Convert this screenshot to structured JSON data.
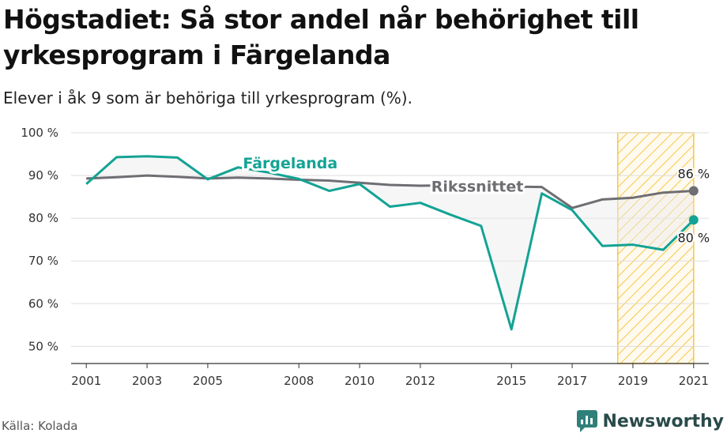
{
  "header": {
    "title": "Högstadiet: Så stor andel når behörighet till yrkesprogram i Färgelanda",
    "subtitle": "Elever i åk 9 som är behöriga till yrkesprogram (%)."
  },
  "footer": {
    "source": "Källa: Kolada",
    "brand": "Newsworthy"
  },
  "colors": {
    "local": "#13a394",
    "national": "#6e6e73",
    "highlight": "#f5c842",
    "grid": "#dddddd"
  },
  "chart_data": {
    "type": "line",
    "title": "Högstadiet: Så stor andel når behörighet till yrkesprogram i Färgelanda",
    "subtitle": "Elever i åk 9 som är behöriga till yrkesprogram (%).",
    "xlabel": "",
    "ylabel": "",
    "xlim": [
      2000.5,
      2021.5
    ],
    "ylim": [
      46,
      100
    ],
    "x_ticks": [
      2001,
      2003,
      2005,
      2008,
      2010,
      2012,
      2015,
      2017,
      2019,
      2021
    ],
    "y_ticks": [
      50,
      60,
      70,
      80,
      90,
      100
    ],
    "y_tick_labels": [
      "50 %",
      "60 %",
      "70 %",
      "80 %",
      "90 %",
      "100 %"
    ],
    "highlight_range": [
      2019,
      2021
    ],
    "grid": true,
    "series": [
      {
        "name": "Färgelanda",
        "color": "#13a394",
        "x": [
          2001,
          2002,
          2003,
          2004,
          2005,
          2006,
          2007,
          2008,
          2009,
          2010,
          2011,
          2012,
          2013,
          2014,
          2015,
          2016,
          2017,
          2018,
          2019,
          2020,
          2021
        ],
        "y": [
          88.0,
          94.3,
          94.5,
          94.2,
          89.1,
          91.9,
          90.7,
          89.2,
          86.4,
          88.0,
          82.7,
          83.6,
          80.8,
          78.2,
          54.0,
          85.8,
          81.9,
          73.5,
          73.8,
          72.6,
          79.6
        ]
      },
      {
        "name": "Rikssnittet",
        "color": "#6e6e73",
        "x": [
          2001,
          2002,
          2003,
          2004,
          2005,
          2006,
          2007,
          2008,
          2009,
          2010,
          2011,
          2012,
          2013,
          2014,
          2015,
          2016,
          2017,
          2018,
          2019,
          2020,
          2021
        ],
        "y": [
          89.3,
          89.6,
          90.0,
          89.7,
          89.3,
          89.5,
          89.3,
          89.0,
          88.8,
          88.3,
          87.8,
          87.6,
          87.7,
          87.5,
          87.4,
          87.3,
          82.4,
          84.4,
          84.8,
          86.0,
          86.4
        ]
      }
    ],
    "annotations": [
      {
        "text": "Färgelanda",
        "series": "Färgelanda",
        "x": 2006
      },
      {
        "text": "Rikssnittet",
        "series": "Rikssnittet",
        "x": 2014
      },
      {
        "text": "86 %",
        "series": "Rikssnittet",
        "x": 2021
      },
      {
        "text": "80 %",
        "series": "Färgelanda",
        "x": 2021
      }
    ]
  }
}
